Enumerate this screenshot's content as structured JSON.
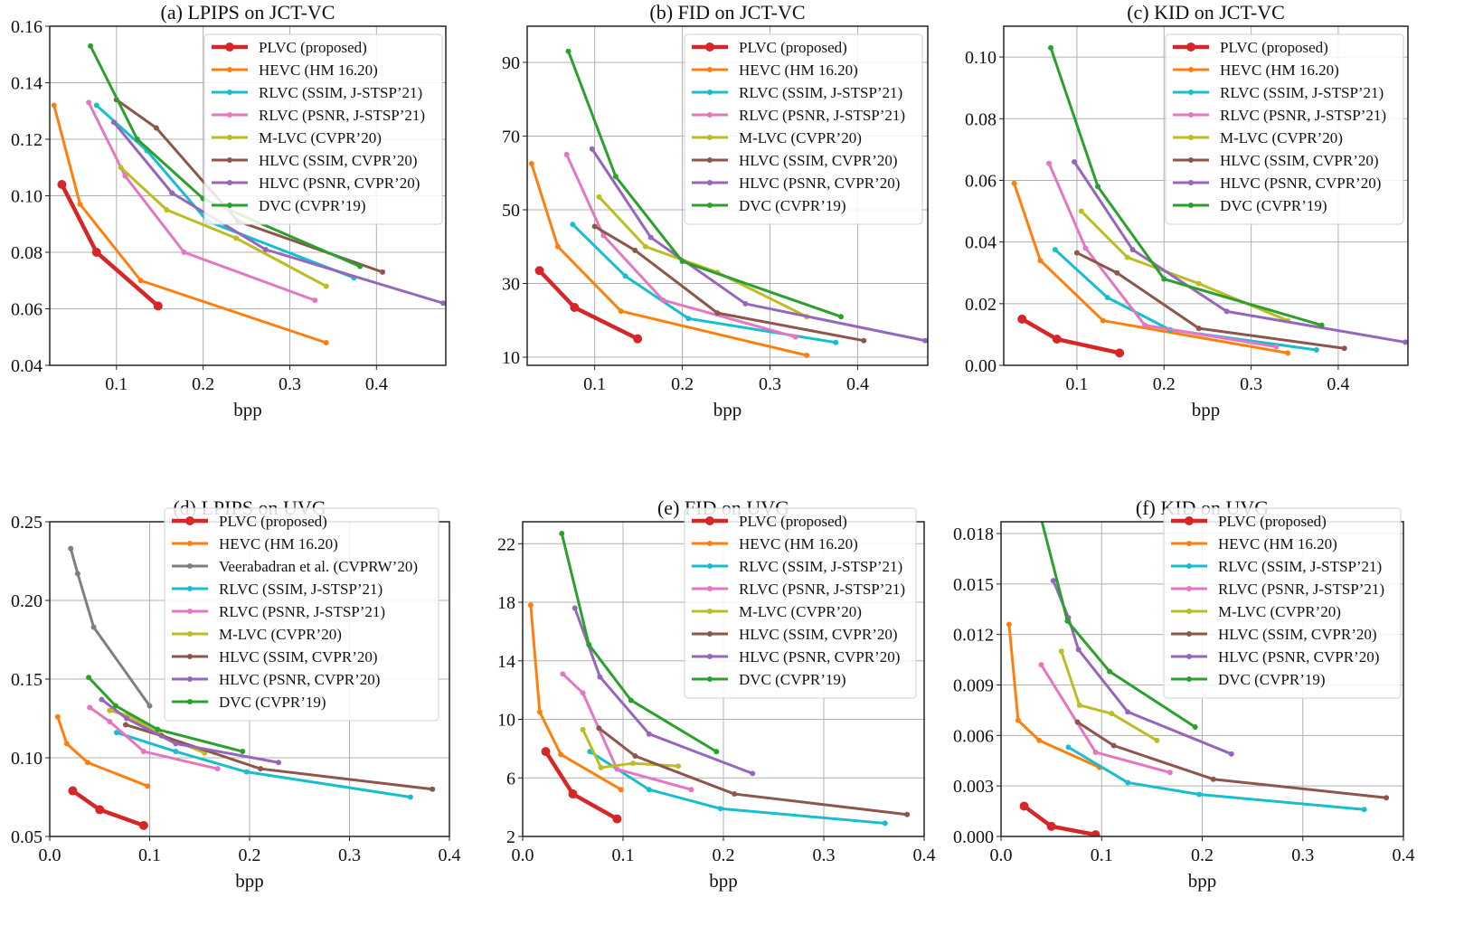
{
  "colors": {
    "PLVC": "#d62728",
    "HEVC": "#ff7f0e",
    "Veerabadran": "#7f7f7f",
    "RLVC_SSIM": "#17becf",
    "RLVC_PSNR": "#e377c2",
    "MLVC": "#bcbd22",
    "HLVC_SSIM": "#8c564b",
    "HLVC_PSNR": "#9467bd",
    "DVC": "#2ca02c"
  },
  "chart_data": [
    {
      "type": "line",
      "title": "(a) LPIPS on JCT-VC",
      "xlabel": "bpp",
      "ylabel": "",
      "xlim": [
        0.023,
        0.48
      ],
      "ylim": [
        0.04,
        0.16
      ],
      "grid": true,
      "legend": "upper right",
      "xticks": [
        0.1,
        0.2,
        0.3,
        0.4
      ],
      "xtick_labels": [
        "0.1",
        "0.2",
        "0.3",
        "0.4"
      ],
      "yticks": [
        0.04,
        0.06,
        0.08,
        0.1,
        0.12,
        0.14,
        0.16
      ],
      "ytick_labels": [
        "0.04",
        "0.06",
        "0.08",
        "0.10",
        "0.12",
        "0.14",
        "0.16"
      ],
      "series": [
        {
          "name": "PLVC (proposed)",
          "color": "PLVC",
          "x": [
            0.037,
            0.077,
            0.148
          ],
          "y": [
            0.104,
            0.08,
            0.061
          ]
        },
        {
          "name": "HEVC (HM 16.20)",
          "color": "HEVC",
          "x": [
            0.028,
            0.058,
            0.128,
            0.342
          ],
          "y": [
            0.132,
            0.097,
            0.07,
            0.048
          ]
        },
        {
          "name": "RLVC (SSIM, J-STSP’21)",
          "color": "RLVC_SSIM",
          "x": [
            0.077,
            0.135,
            0.205,
            0.374
          ],
          "y": [
            0.132,
            0.116,
            0.091,
            0.071
          ]
        },
        {
          "name": "RLVC (PSNR, J-STSP’21)",
          "color": "RLVC_PSNR",
          "x": [
            0.068,
            0.11,
            0.178,
            0.329
          ],
          "y": [
            0.133,
            0.107,
            0.08,
            0.063
          ]
        },
        {
          "name": "M-LVC (CVPR’20)",
          "color": "MLVC",
          "x": [
            0.105,
            0.158,
            0.238,
            0.342
          ],
          "y": [
            0.11,
            0.095,
            0.085,
            0.068
          ]
        },
        {
          "name": "HLVC (SSIM, CVPR’20)",
          "color": "HLVC_SSIM",
          "x": [
            0.1,
            0.146,
            0.24,
            0.407
          ],
          "y": [
            0.134,
            0.124,
            0.091,
            0.073
          ]
        },
        {
          "name": "HLVC (PSNR, CVPR’20)",
          "color": "HLVC_PSNR",
          "x": [
            0.097,
            0.164,
            0.272,
            0.477
          ],
          "y": [
            0.126,
            0.101,
            0.081,
            0.062
          ]
        },
        {
          "name": "DVC (CVPR’19)",
          "color": "DVC",
          "x": [
            0.07,
            0.124,
            0.2,
            0.381
          ],
          "y": [
            0.153,
            0.12,
            0.099,
            0.075
          ]
        }
      ]
    },
    {
      "type": "line",
      "title": "(b) FID on JCT-VC",
      "xlabel": "bpp",
      "ylabel": "",
      "xlim": [
        0.023,
        0.48
      ],
      "ylim": [
        7.8,
        99.8
      ],
      "grid": true,
      "legend": "upper right",
      "xticks": [
        0.1,
        0.2,
        0.3,
        0.4
      ],
      "xtick_labels": [
        "0.1",
        "0.2",
        "0.3",
        "0.4"
      ],
      "yticks": [
        10,
        30,
        50,
        70,
        90
      ],
      "ytick_labels": [
        "10",
        "30",
        "50",
        "70",
        "90"
      ],
      "series": [
        {
          "name": "PLVC (proposed)",
          "color": "PLVC",
          "x": [
            0.037,
            0.077,
            0.149
          ],
          "y": [
            33.5,
            23.5,
            15
          ]
        },
        {
          "name": "HEVC (HM 16.20)",
          "color": "HEVC",
          "x": [
            0.028,
            0.058,
            0.13,
            0.342
          ],
          "y": [
            62.5,
            40,
            22.5,
            10.5
          ]
        },
        {
          "name": "RLVC (SSIM, J-STSP’21)",
          "color": "RLVC_SSIM",
          "x": [
            0.075,
            0.135,
            0.207,
            0.375
          ],
          "y": [
            46,
            32,
            20.5,
            14
          ]
        },
        {
          "name": "RLVC (PSNR, J-STSP’21)",
          "color": "RLVC_PSNR",
          "x": [
            0.068,
            0.11,
            0.178,
            0.329
          ],
          "y": [
            65,
            43,
            25.5,
            15.5
          ]
        },
        {
          "name": "M-LVC (CVPR’20)",
          "color": "MLVC",
          "x": [
            0.105,
            0.158,
            0.24,
            0.342
          ],
          "y": [
            53.5,
            40,
            33,
            21
          ]
        },
        {
          "name": "HLVC (SSIM, CVPR’20)",
          "color": "HLVC_SSIM",
          "x": [
            0.1,
            0.146,
            0.24,
            0.407
          ],
          "y": [
            45.5,
            39,
            22,
            14.5
          ]
        },
        {
          "name": "HLVC (PSNR, CVPR’20)",
          "color": "HLVC_PSNR",
          "x": [
            0.097,
            0.164,
            0.272,
            0.477
          ],
          "y": [
            66.5,
            42.5,
            24.5,
            14.5
          ]
        },
        {
          "name": "DVC (CVPR’19)",
          "color": "DVC",
          "x": [
            0.07,
            0.124,
            0.2,
            0.381
          ],
          "y": [
            93,
            59,
            36,
            21
          ]
        }
      ]
    },
    {
      "type": "line",
      "title": "(c) KID on JCT-VC",
      "xlabel": "bpp",
      "ylabel": "",
      "xlim": [
        0.016,
        0.48
      ],
      "ylim": [
        0,
        0.11
      ],
      "grid": true,
      "legend": "upper right",
      "xticks": [
        0.1,
        0.2,
        0.3,
        0.4
      ],
      "xtick_labels": [
        "0.1",
        "0.2",
        "0.3",
        "0.4"
      ],
      "yticks": [
        0,
        0.02,
        0.04,
        0.06,
        0.08,
        0.1
      ],
      "ytick_labels": [
        "0.00",
        "0.02",
        "0.04",
        "0.06",
        "0.08",
        "0.10"
      ],
      "series": [
        {
          "name": "PLVC (proposed)",
          "color": "PLVC",
          "x": [
            0.037,
            0.077,
            0.149
          ],
          "y": [
            0.015,
            0.0085,
            0.004
          ]
        },
        {
          "name": "HEVC (HM 16.20)",
          "color": "HEVC",
          "x": [
            0.028,
            0.058,
            0.13,
            0.342
          ],
          "y": [
            0.059,
            0.034,
            0.0145,
            0.004
          ]
        },
        {
          "name": "RLVC (SSIM, J-STSP’21)",
          "color": "RLVC_SSIM",
          "x": [
            0.075,
            0.135,
            0.207,
            0.375
          ],
          "y": [
            0.0375,
            0.022,
            0.0115,
            0.005
          ]
        },
        {
          "name": "RLVC (PSNR, J-STSP’21)",
          "color": "RLVC_PSNR",
          "x": [
            0.068,
            0.11,
            0.178,
            0.329
          ],
          "y": [
            0.0655,
            0.038,
            0.013,
            0.006
          ]
        },
        {
          "name": "M-LVC (CVPR’20)",
          "color": "MLVC",
          "x": [
            0.105,
            0.158,
            0.24,
            0.342
          ],
          "y": [
            0.05,
            0.035,
            0.0265,
            0.0145
          ]
        },
        {
          "name": "HLVC (SSIM, CVPR’20)",
          "color": "HLVC_SSIM",
          "x": [
            0.1,
            0.146,
            0.24,
            0.407
          ],
          "y": [
            0.0365,
            0.03,
            0.012,
            0.0055
          ]
        },
        {
          "name": "HLVC (PSNR, CVPR’20)",
          "color": "HLVC_PSNR",
          "x": [
            0.097,
            0.164,
            0.272,
            0.477
          ],
          "y": [
            0.066,
            0.0375,
            0.0175,
            0.0075
          ]
        },
        {
          "name": "DVC (CVPR’19)",
          "color": "DVC",
          "x": [
            0.07,
            0.124,
            0.2,
            0.381
          ],
          "y": [
            0.103,
            0.058,
            0.028,
            0.013
          ]
        }
      ]
    },
    {
      "type": "line",
      "title": "(d) LPIPS on UVG",
      "xlabel": "bpp",
      "ylabel": "",
      "xlim": [
        0,
        0.4
      ],
      "ylim": [
        0.05,
        0.25
      ],
      "grid": true,
      "legend": "upper right",
      "xticks": [
        0,
        0.1,
        0.2,
        0.3,
        0.4
      ],
      "xtick_labels": [
        "0.0",
        "0.1",
        "0.2",
        "0.3",
        "0.4"
      ],
      "yticks": [
        0.05,
        0.1,
        0.15,
        0.2,
        0.25
      ],
      "ytick_labels": [
        "0.05",
        "0.10",
        "0.15",
        "0.20",
        "0.25"
      ],
      "series": [
        {
          "name": "PLVC (proposed)",
          "color": "PLVC",
          "x": [
            0.023,
            0.05,
            0.094
          ],
          "y": [
            0.079,
            0.067,
            0.057
          ]
        },
        {
          "name": "HEVC (HM 16.20)",
          "color": "HEVC",
          "x": [
            0.008,
            0.017,
            0.038,
            0.098
          ],
          "y": [
            0.126,
            0.109,
            0.097,
            0.082
          ]
        },
        {
          "name": "Veerabadran et al. (CVPRW’20)",
          "color": "Veerabadran",
          "x": [
            0.021,
            0.028,
            0.044,
            0.1
          ],
          "y": [
            0.233,
            0.217,
            0.183,
            0.133
          ]
        },
        {
          "name": "RLVC (SSIM, J-STSP’21)",
          "color": "RLVC_SSIM",
          "x": [
            0.067,
            0.126,
            0.197,
            0.361
          ],
          "y": [
            0.116,
            0.104,
            0.091,
            0.075
          ]
        },
        {
          "name": "RLVC (PSNR, J-STSP’21)",
          "color": "RLVC_PSNR",
          "x": [
            0.04,
            0.06,
            0.094,
            0.168
          ],
          "y": [
            0.132,
            0.123,
            0.104,
            0.093
          ]
        },
        {
          "name": "M-LVC (CVPR’20)",
          "color": "MLVC",
          "x": [
            0.06,
            0.078,
            0.11,
            0.155
          ],
          "y": [
            0.13,
            0.127,
            0.115,
            0.103
          ]
        },
        {
          "name": "HLVC (SSIM, CVPR’20)",
          "color": "HLVC_SSIM",
          "x": [
            0.076,
            0.112,
            0.211,
            0.383
          ],
          "y": [
            0.121,
            0.114,
            0.093,
            0.08
          ]
        },
        {
          "name": "HLVC (PSNR, CVPR’20)",
          "color": "HLVC_PSNR",
          "x": [
            0.052,
            0.077,
            0.126,
            0.229
          ],
          "y": [
            0.137,
            0.125,
            0.109,
            0.097
          ]
        },
        {
          "name": "DVC (CVPR’19)",
          "color": "DVC",
          "x": [
            0.039,
            0.066,
            0.108,
            0.193
          ],
          "y": [
            0.151,
            0.133,
            0.118,
            0.104
          ]
        }
      ]
    },
    {
      "type": "line",
      "title": "(e) FID on UVG",
      "xlabel": "bpp",
      "ylabel": "",
      "xlim": [
        0,
        0.4
      ],
      "ylim": [
        2,
        23.5
      ],
      "grid": true,
      "legend": "upper right",
      "xticks": [
        0,
        0.1,
        0.2,
        0.3,
        0.4
      ],
      "xtick_labels": [
        "0.0",
        "0.1",
        "0.2",
        "0.3",
        "0.4"
      ],
      "yticks": [
        2,
        6,
        10,
        14,
        18,
        22
      ],
      "ytick_labels": [
        "2",
        "6",
        "10",
        "14",
        "18",
        "22"
      ],
      "series": [
        {
          "name": "PLVC (proposed)",
          "color": "PLVC",
          "x": [
            0.023,
            0.05,
            0.094
          ],
          "y": [
            7.8,
            4.9,
            3.2
          ]
        },
        {
          "name": "HEVC (HM 16.20)",
          "color": "HEVC",
          "x": [
            0.008,
            0.017,
            0.038,
            0.098
          ],
          "y": [
            17.8,
            10.5,
            7.6,
            5.2
          ]
        },
        {
          "name": "RLVC (SSIM, J-STSP’21)",
          "color": "RLVC_SSIM",
          "x": [
            0.067,
            0.126,
            0.197,
            0.361
          ],
          "y": [
            7.8,
            5.2,
            3.9,
            2.9
          ]
        },
        {
          "name": "RLVC (PSNR, J-STSP’21)",
          "color": "RLVC_PSNR",
          "x": [
            0.04,
            0.06,
            0.094,
            0.168
          ],
          "y": [
            13.1,
            11.8,
            6.6,
            5.2
          ]
        },
        {
          "name": "M-LVC (CVPR’20)",
          "color": "MLVC",
          "x": [
            0.06,
            0.078,
            0.11,
            0.155
          ],
          "y": [
            9.3,
            6.7,
            7.0,
            6.8
          ]
        },
        {
          "name": "HLVC (SSIM, CVPR’20)",
          "color": "HLVC_SSIM",
          "x": [
            0.076,
            0.112,
            0.211,
            0.383
          ],
          "y": [
            9.4,
            7.5,
            4.9,
            3.5
          ]
        },
        {
          "name": "HLVC (PSNR, CVPR’20)",
          "color": "HLVC_PSNR",
          "x": [
            0.052,
            0.077,
            0.126,
            0.229
          ],
          "y": [
            17.6,
            12.9,
            9.0,
            6.3
          ]
        },
        {
          "name": "DVC (CVPR’19)",
          "color": "DVC",
          "x": [
            0.039,
            0.066,
            0.108,
            0.193
          ],
          "y": [
            22.7,
            15.1,
            11.3,
            7.8
          ]
        }
      ]
    },
    {
      "type": "line",
      "title": "(f) KID on UVG",
      "xlabel": "bpp",
      "ylabel": "",
      "xlim": [
        0,
        0.4
      ],
      "ylim": [
        0,
        0.0187
      ],
      "grid": true,
      "legend": "upper right",
      "xticks": [
        0,
        0.1,
        0.2,
        0.3,
        0.4
      ],
      "xtick_labels": [
        "0.0",
        "0.1",
        "0.2",
        "0.3",
        "0.4"
      ],
      "yticks": [
        0,
        0.003,
        0.006,
        0.009,
        0.012,
        0.015,
        0.018
      ],
      "ytick_labels": [
        "0.000",
        "0.003",
        "0.006",
        "0.009",
        "0.012",
        "0.015",
        "0.018"
      ],
      "series": [
        {
          "name": "PLVC (proposed)",
          "color": "PLVC",
          "x": [
            0.023,
            0.05,
            0.094
          ],
          "y": [
            0.0018,
            0.0006,
            0.0001
          ]
        },
        {
          "name": "HEVC (HM 16.20)",
          "color": "HEVC",
          "x": [
            0.008,
            0.017,
            0.038,
            0.098
          ],
          "y": [
            0.0126,
            0.0069,
            0.0057,
            0.0041
          ]
        },
        {
          "name": "RLVC (SSIM, J-STSP’21)",
          "color": "RLVC_SSIM",
          "x": [
            0.067,
            0.126,
            0.197,
            0.361
          ],
          "y": [
            0.0053,
            0.0032,
            0.0025,
            0.0016
          ]
        },
        {
          "name": "RLVC (PSNR, J-STSP’21)",
          "color": "RLVC_PSNR",
          "x": [
            0.04,
            0.094,
            0.168
          ],
          "y": [
            0.0102,
            0.005,
            0.0038
          ]
        },
        {
          "name": "M-LVC (CVPR’20)",
          "color": "MLVC",
          "x": [
            0.06,
            0.078,
            0.11,
            0.155
          ],
          "y": [
            0.011,
            0.0078,
            0.0073,
            0.0057
          ]
        },
        {
          "name": "HLVC (SSIM, CVPR’20)",
          "color": "HLVC_SSIM",
          "x": [
            0.076,
            0.112,
            0.211,
            0.383
          ],
          "y": [
            0.0068,
            0.0054,
            0.0034,
            0.0023
          ]
        },
        {
          "name": "HLVC (PSNR, CVPR’20)",
          "color": "HLVC_PSNR",
          "x": [
            0.052,
            0.067,
            0.077,
            0.126,
            0.229
          ],
          "y": [
            0.0152,
            0.013,
            0.0111,
            0.0074,
            0.0049
          ]
        },
        {
          "name": "DVC (CVPR’19)",
          "color": "DVC",
          "x": [
            0.039,
            0.066,
            0.108,
            0.193
          ],
          "y": [
            0.0191,
            0.0128,
            0.0098,
            0.0065
          ]
        }
      ]
    }
  ]
}
